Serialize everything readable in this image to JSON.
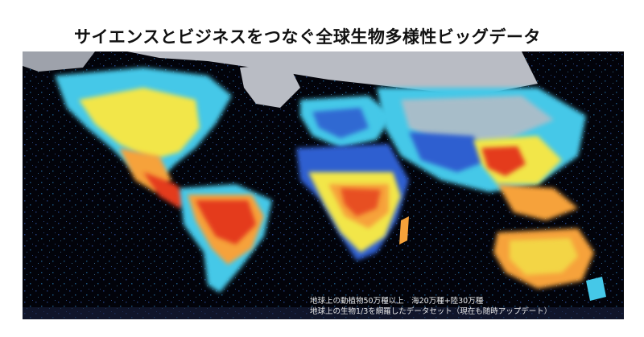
{
  "header": {
    "title": "サイエンスとビジネスをつなぐ全球生物多様性ビッグデータ"
  },
  "map": {
    "caption_line1": "地球上の動植物50万種以上　海20万種+陸30万種",
    "caption_line2": "地球上の生物1/3を網羅したデータセット（現在も随時アップデート）",
    "colors": {
      "ocean": "#02030a",
      "ice": "#b9bcc4",
      "low": "#2f5fd0",
      "mid_low": "#45c8e8",
      "mid": "#f2e64a",
      "mid_high": "#f6a23a",
      "high": "#e43a1c"
    }
  }
}
